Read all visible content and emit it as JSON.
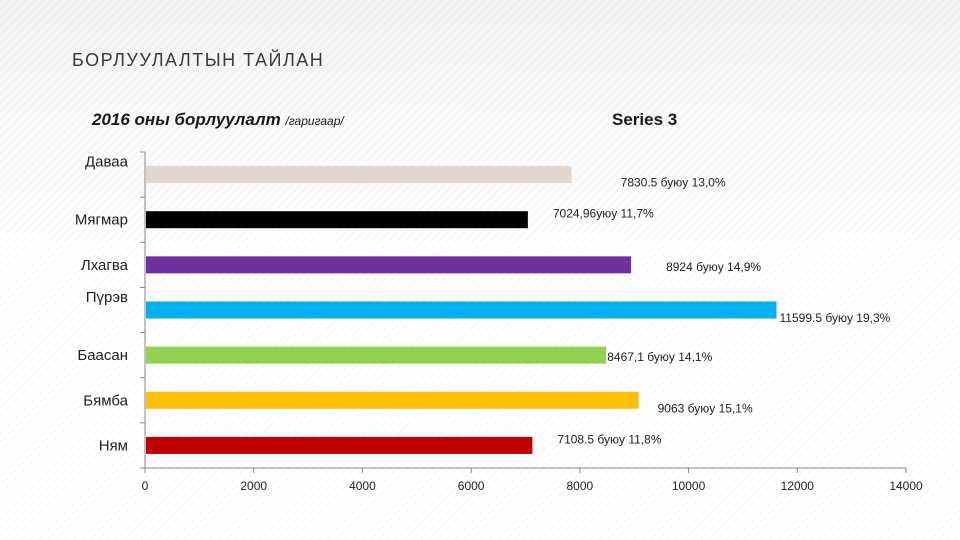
{
  "page": {
    "title": "БОРЛУУЛАЛТЫН ТАЙЛАН"
  },
  "chart_data": {
    "type": "bar",
    "orientation": "horizontal",
    "title": "2016 оны борлуулалт",
    "title_unit": "/гаригаар/",
    "series_name": "Series 3",
    "categories": [
      "Даваа",
      "Мягмар",
      "Лхагва",
      "Пүрэв",
      "Баасан",
      "Бямба",
      "Ням"
    ],
    "values": [
      7830.5,
      7024.9,
      8924,
      11599.5,
      8467.1,
      9063,
      7108.5
    ],
    "colors": [
      "#e3d6cf",
      "#000000",
      "#7030a0",
      "#00b0f0",
      "#92d050",
      "#ffc000",
      "#c00000"
    ],
    "data_labels": [
      "7830.5 буюу 13,0%",
      "7024,96уюу 11,7%",
      "8924 буюу 14,9%",
      "11599.5 буюу 19,3%",
      "8467,1 буюу 14,1%",
      "9063 буюу 15,1%",
      "7108.5 буюу 11,8%"
    ],
    "xlim": [
      0,
      14000
    ],
    "x_ticks": [
      0,
      2000,
      4000,
      6000,
      8000,
      10000,
      12000,
      14000
    ],
    "grid": false
  }
}
